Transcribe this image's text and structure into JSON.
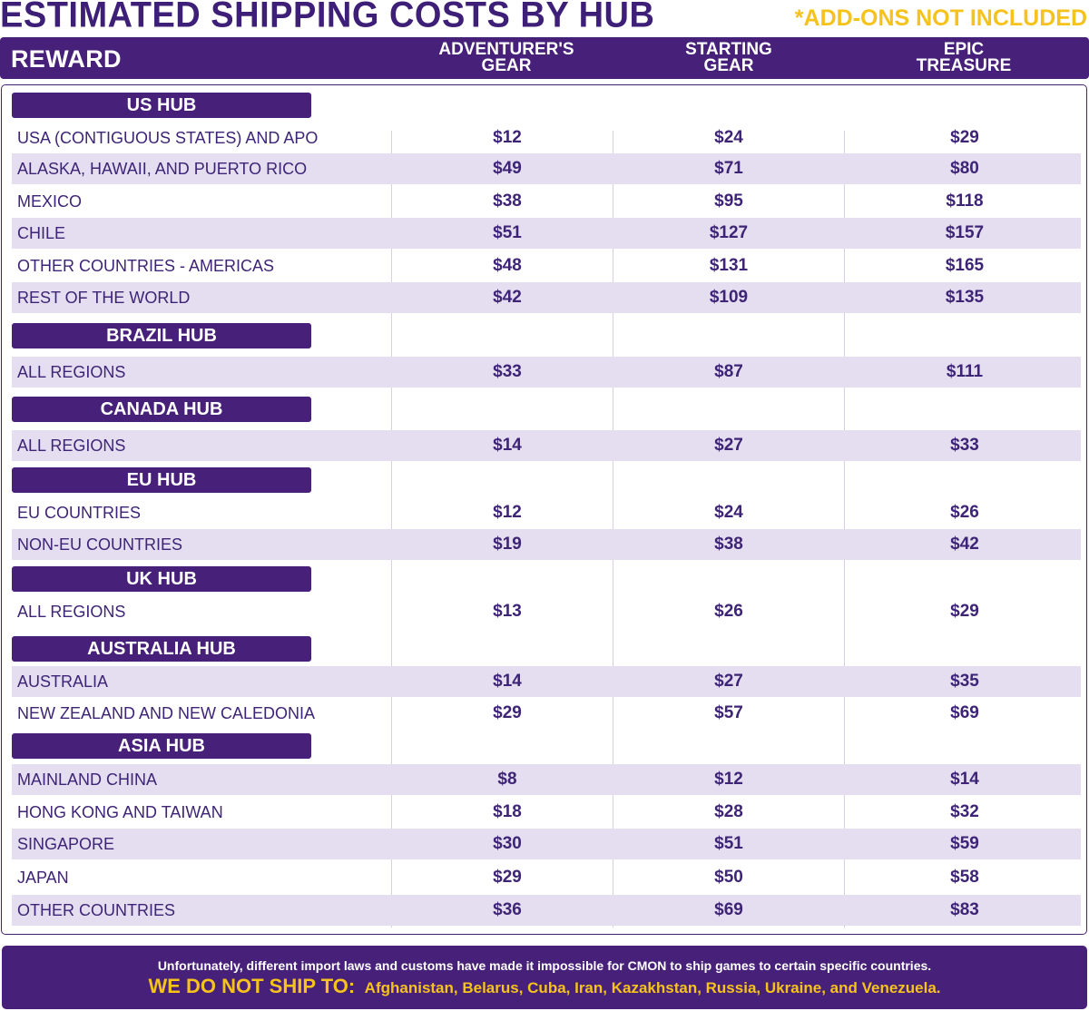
{
  "title": "ESTIMATED SHIPPING COSTS BY HUB",
  "addons_note": "*ADD-ONS NOT INCLUDED",
  "header": {
    "reward": "REWARD",
    "columns": [
      "ADVENTURER'S\nGEAR",
      "STARTING\nGEAR",
      "EPIC\nTREASURE"
    ]
  },
  "hubs": [
    {
      "name": "US HUB",
      "rows": [
        {
          "region": "USA (CONTIGUOUS STATES) AND APO",
          "prices": [
            "$12",
            "$24",
            "$29"
          ]
        },
        {
          "region": "ALASKA, HAWAII, AND PUERTO RICO",
          "prices": [
            "$49",
            "$71",
            "$80"
          ]
        },
        {
          "region": "MEXICO",
          "prices": [
            "$38",
            "$95",
            "$118"
          ]
        },
        {
          "region": "CHILE",
          "prices": [
            "$51",
            "$127",
            "$157"
          ]
        },
        {
          "region": "OTHER COUNTRIES - AMERICAS",
          "prices": [
            "$48",
            "$131",
            "$165"
          ]
        },
        {
          "region": "REST OF THE WORLD",
          "prices": [
            "$42",
            "$109",
            "$135"
          ]
        }
      ]
    },
    {
      "name": "BRAZIL HUB",
      "rows": [
        {
          "region": "ALL REGIONS",
          "prices": [
            "$33",
            "$87",
            "$111"
          ]
        }
      ]
    },
    {
      "name": "CANADA HUB",
      "rows": [
        {
          "region": "ALL REGIONS",
          "prices": [
            "$14",
            "$27",
            "$33"
          ]
        }
      ]
    },
    {
      "name": "EU HUB",
      "rows": [
        {
          "region": "EU COUNTRIES",
          "prices": [
            "$12",
            "$24",
            "$26"
          ]
        },
        {
          "region": "NON-EU COUNTRIES",
          "prices": [
            "$19",
            "$38",
            "$42"
          ]
        }
      ]
    },
    {
      "name": "UK HUB",
      "rows": [
        {
          "region": "ALL REGIONS",
          "prices": [
            "$13",
            "$26",
            "$29"
          ]
        }
      ]
    },
    {
      "name": "AUSTRALIA HUB",
      "rows": [
        {
          "region": "AUSTRALIA",
          "prices": [
            "$14",
            "$27",
            "$35"
          ]
        },
        {
          "region": "NEW ZEALAND AND NEW CALEDONIA",
          "prices": [
            "$29",
            "$57",
            "$69"
          ]
        }
      ]
    },
    {
      "name": "ASIA HUB",
      "rows": [
        {
          "region": "MAINLAND CHINA",
          "prices": [
            "$8",
            "$12",
            "$14"
          ]
        },
        {
          "region": "HONG KONG AND TAIWAN",
          "prices": [
            "$18",
            "$28",
            "$32"
          ]
        },
        {
          "region": "SINGAPORE",
          "prices": [
            "$30",
            "$51",
            "$59"
          ]
        },
        {
          "region": "JAPAN",
          "prices": [
            "$29",
            "$50",
            "$58"
          ]
        },
        {
          "region": "OTHER COUNTRIES",
          "prices": [
            "$36",
            "$69",
            "$83"
          ]
        }
      ]
    }
  ],
  "footer": {
    "note": "Unfortunately, different import laws and customs have made it impossible for CMON to ship games to certain specific countries.",
    "lead": "WE DO NOT SHIP TO:",
    "countries": "Afghanistan, Belarus, Cuba, Iran, Kazakhstan, Russia, Ukraine, and Venezuela."
  },
  "colors": {
    "purple": "#47207a",
    "text_purple": "#3e2476",
    "shade": "#e4def0",
    "yellow": "#f6c21c"
  }
}
